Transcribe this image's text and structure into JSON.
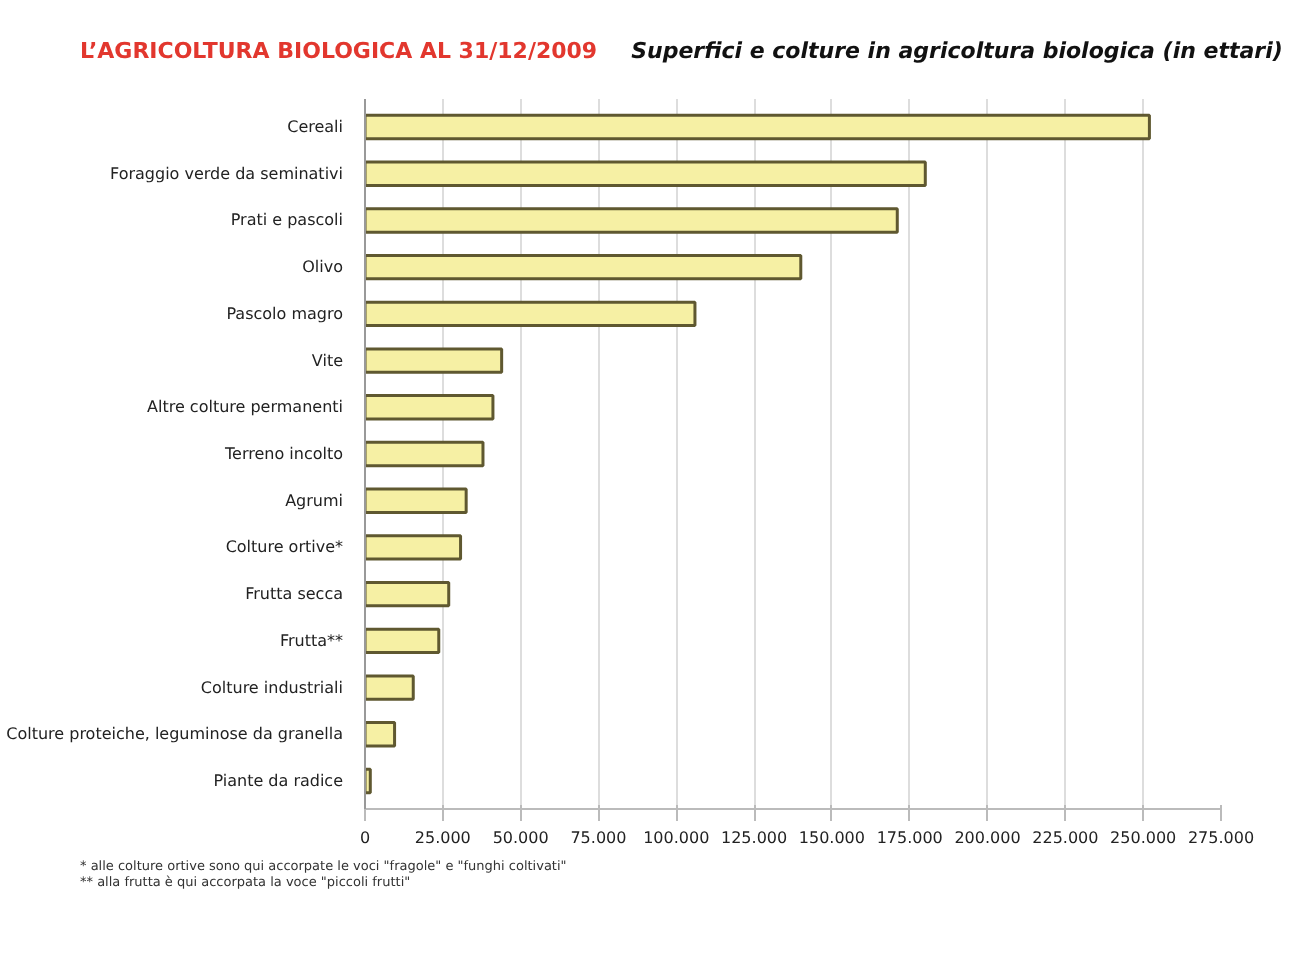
{
  "chart_data": {
    "type": "bar",
    "orientation": "horizontal",
    "title": "L’AGRICOLTURA BIOLOGICA AL 31/12/2009",
    "subtitle": "Superfici e colture in agricoltura biologica (in ettari)",
    "categories": [
      "Cereali",
      "Foraggio verde da seminativi",
      "Prati e pascoli",
      "Olivo",
      "Pascolo magro",
      "Vite",
      "Altre colture permanenti",
      "Terreno incolto",
      "Agrumi",
      "Colture ortive*",
      "Frutta secca",
      "Frutta**",
      "Colture industriali",
      "Colture proteiche, leguminose da granella",
      "Piante da radice"
    ],
    "values": [
      252000,
      180000,
      171000,
      140000,
      106000,
      43900,
      41100,
      37900,
      32500,
      30700,
      26900,
      23700,
      15500,
      9500,
      1700
    ],
    "color": "#f6f0a4",
    "xlim": [
      0,
      275000
    ],
    "xticks": [
      0,
      {
        "value": 25000,
        "label": "25.000"
      },
      {
        "value": 50000,
        "label": "50.000"
      },
      {
        "value": 75000,
        "label": "75.000"
      },
      {
        "value": 100000,
        "label": "100.000"
      },
      {
        "value": 125000,
        "label": "125.000"
      },
      {
        "value": 150000,
        "label": "150.000"
      },
      {
        "value": 175000,
        "label": "175.000"
      },
      {
        "value": 200000,
        "label": "200.000"
      },
      {
        "value": 225000,
        "label": "225.000"
      },
      {
        "value": 250000,
        "label": "250.000"
      },
      {
        "value": 275000,
        "label": "275.000"
      }
    ],
    "grid": "x",
    "annotations": [
      "* alle colture ortive sono qui accorpate le voci \"fragole\" e \"funghi coltivati\"",
      "** alla frutta è qui accorpata la voce \"piccoli frutti\""
    ]
  }
}
